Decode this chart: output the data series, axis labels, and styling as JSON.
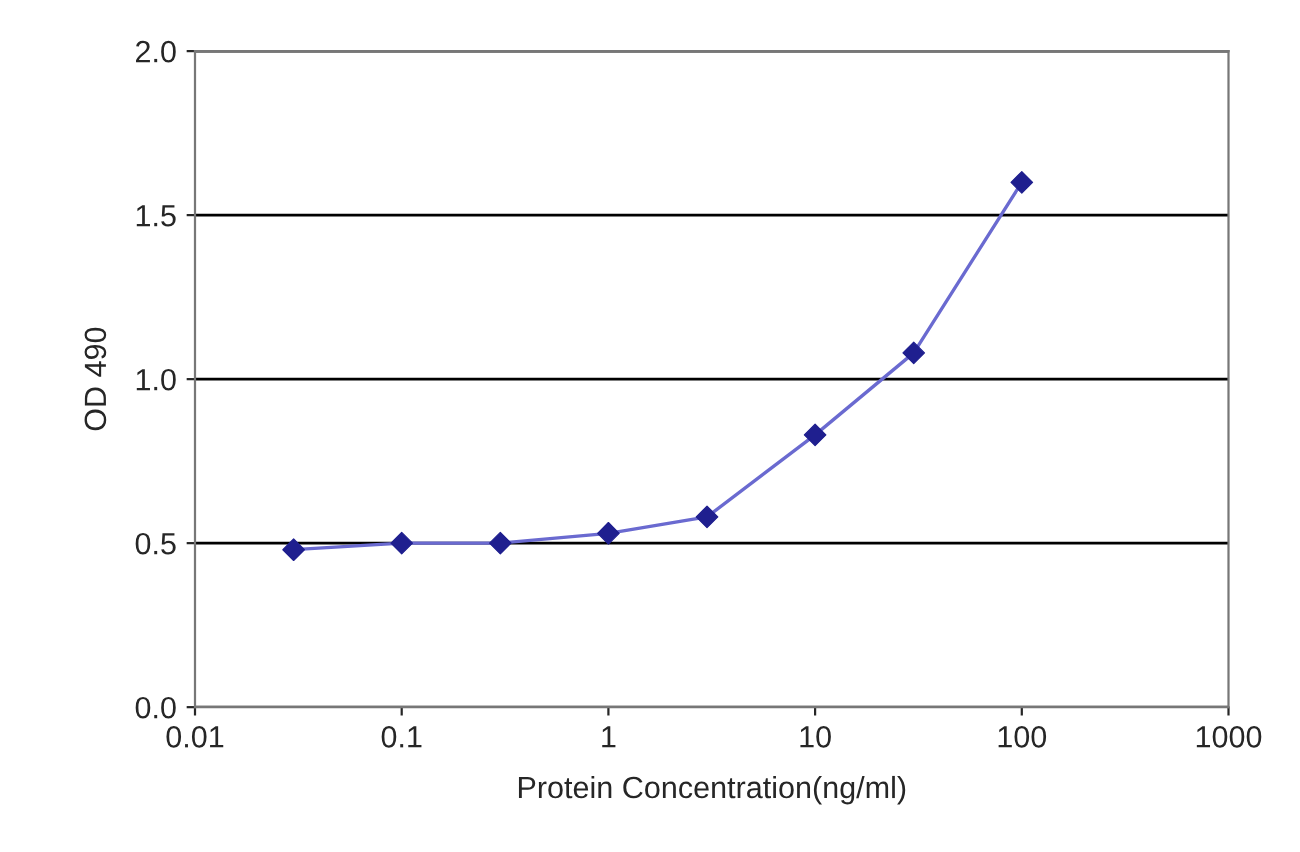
{
  "chart_data": {
    "type": "line",
    "xlabel": "Protein Concentration(ng/ml)",
    "ylabel": "OD 490",
    "x": [
      0.03,
      0.1,
      0.3,
      1,
      3,
      10,
      30,
      100
    ],
    "series": [
      {
        "color": "#1f1f8f",
        "values": [
          0.48,
          0.5,
          0.5,
          0.53,
          0.58,
          0.83,
          1.08,
          1.6
        ]
      }
    ],
    "log": "x",
    "xlim": [
      0.01,
      1000
    ],
    "xticks": [
      0.01,
      0.1,
      1,
      10,
      100,
      1000
    ],
    "ylim": [
      0,
      2
    ],
    "yticks": [
      {
        "value": 0,
        "label": "0.0"
      },
      {
        "value": 0.5,
        "label": "0.5"
      },
      {
        "value": 1,
        "label": "1.0"
      },
      {
        "value": 1.5,
        "label": "1.5"
      },
      {
        "value": 2,
        "label": "2.0"
      }
    ],
    "grid": "y",
    "marker": "diamond",
    "line_style": "solid"
  }
}
